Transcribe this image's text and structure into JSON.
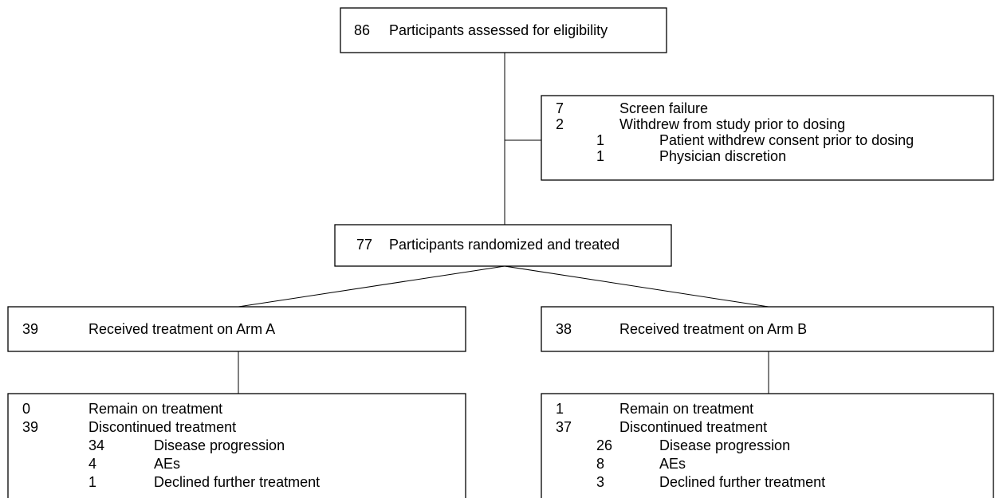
{
  "screening": {
    "count": 86,
    "label": "Participants assessed for eligibility"
  },
  "exclusions": {
    "rows": [
      {
        "count": 7,
        "label": "Screen failure"
      },
      {
        "count": 2,
        "label": "Withdrew from study prior to dosing",
        "reasons": [
          {
            "count": 1,
            "label": "Patient withdrew consent prior to dosing"
          },
          {
            "count": 1,
            "label": "Physician discretion"
          }
        ]
      }
    ]
  },
  "randomized": {
    "count": 77,
    "label": "Participants randomized and treated"
  },
  "arm_a": {
    "count": 39,
    "label": "Received treatment on Arm A"
  },
  "arm_b": {
    "count": 38,
    "label": "Received treatment on Arm B"
  },
  "arm_a_status": {
    "rows": [
      {
        "count": 0,
        "label": "Remain on treatment"
      },
      {
        "count": 39,
        "label": "Discontinued treatment",
        "reasons": [
          {
            "count": 34,
            "label": "Disease progression"
          },
          {
            "count": 4,
            "label": "AEs"
          },
          {
            "count": 1,
            "label": "Declined further treatment"
          }
        ]
      }
    ]
  },
  "arm_b_status": {
    "rows": [
      {
        "count": 1,
        "label": "Remain on treatment"
      },
      {
        "count": 37,
        "label": "Discontinued treatment",
        "reasons": [
          {
            "count": 26,
            "label": "Disease progression"
          },
          {
            "count": 8,
            "label": "AEs"
          },
          {
            "count": 3,
            "label": "Declined further treatment"
          }
        ]
      }
    ]
  }
}
